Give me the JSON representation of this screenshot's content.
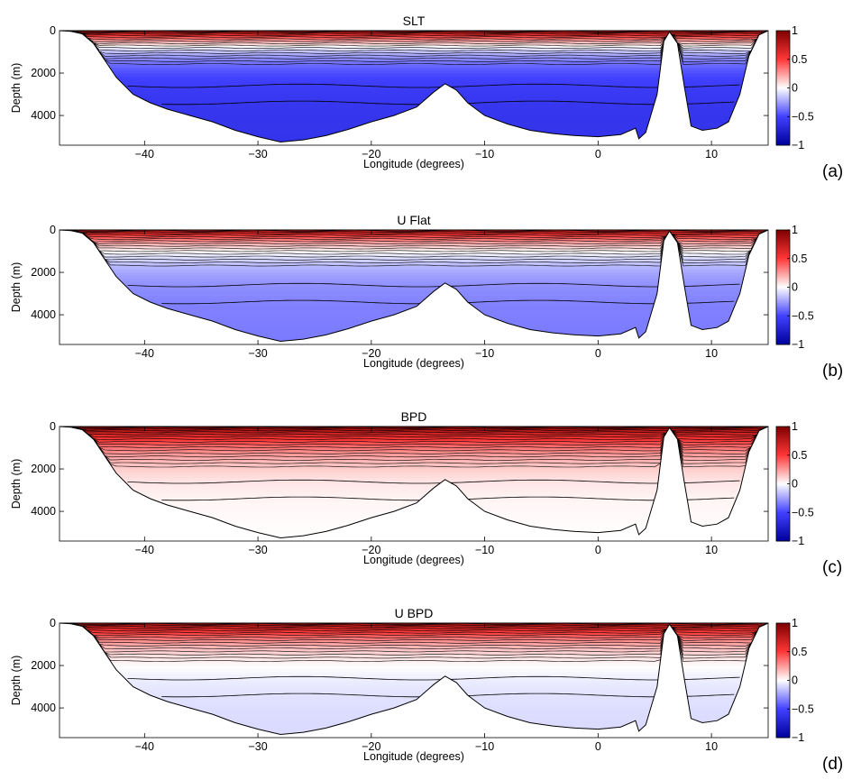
{
  "chart_data": [
    {
      "type": "heatmap",
      "panel_label": "(a)",
      "title": "SLT",
      "xlabel": "Longitude (degrees)",
      "ylabel": "Depth (m)",
      "xlim": [
        -47.5,
        15
      ],
      "ylim": [
        5400,
        0
      ],
      "xticks": [
        "−40",
        "−30",
        "−20",
        "−10",
        "0",
        "10"
      ],
      "yticks": [
        "0",
        "2000",
        "4000"
      ],
      "colorbar": {
        "clim": [
          -1,
          1
        ],
        "ticks": [
          "1",
          "0.5",
          "0",
          "−0.5",
          "−1"
        ],
        "colormap": "blue-white-red"
      },
      "fields": {
        "surface_value": 0.9,
        "deep_value": -0.6,
        "thermocline_depth": 1500
      }
    },
    {
      "type": "heatmap",
      "panel_label": "(b)",
      "title": "U Flat",
      "xlabel": "Longitude (degrees)",
      "ylabel": "Depth (m)",
      "xlim": [
        -47.5,
        15
      ],
      "ylim": [
        5400,
        0
      ],
      "xticks": [
        "−40",
        "−30",
        "−20",
        "−10",
        "0",
        "10"
      ],
      "yticks": [
        "0",
        "2000",
        "4000"
      ],
      "colorbar": {
        "clim": [
          -1,
          1
        ],
        "ticks": [
          "1",
          "0.5",
          "0",
          "−0.5",
          "−1"
        ],
        "colormap": "blue-white-red"
      },
      "fields": {
        "surface_value": 0.8,
        "deep_value": -0.35,
        "thermocline_depth": 1600
      }
    },
    {
      "type": "heatmap",
      "panel_label": "(c)",
      "title": "BPD",
      "xlabel": "Longitude (degrees)",
      "ylabel": "Depth (m)",
      "xlim": [
        -47.5,
        15
      ],
      "ylim": [
        5400,
        0
      ],
      "xticks": [
        "−40",
        "−30",
        "−20",
        "−10",
        "0",
        "10"
      ],
      "yticks": [
        "0",
        "2000",
        "4000"
      ],
      "colorbar": {
        "clim": [
          -1,
          1
        ],
        "ticks": [
          "1",
          "0.5",
          "0",
          "−0.5",
          "−1"
        ],
        "colormap": "blue-white-red"
      },
      "fields": {
        "surface_value": 0.95,
        "deep_value": 0.0,
        "thermocline_depth": 1800
      }
    },
    {
      "type": "heatmap",
      "panel_label": "(d)",
      "title": "U BPD",
      "xlabel": "Longitude (degrees)",
      "ylabel": "Depth (m)",
      "xlim": [
        -47.5,
        15
      ],
      "ylim": [
        5400,
        0
      ],
      "xticks": [
        "−40",
        "−30",
        "−20",
        "−10",
        "0",
        "10"
      ],
      "yticks": [
        "0",
        "2000",
        "4000"
      ],
      "colorbar": {
        "clim": [
          -1,
          1
        ],
        "ticks": [
          "1",
          "0.5",
          "0",
          "−0.5",
          "−1"
        ],
        "colormap": "blue-white-red"
      },
      "fields": {
        "surface_value": 0.85,
        "deep_value": -0.1,
        "thermocline_depth": 1700
      }
    }
  ]
}
